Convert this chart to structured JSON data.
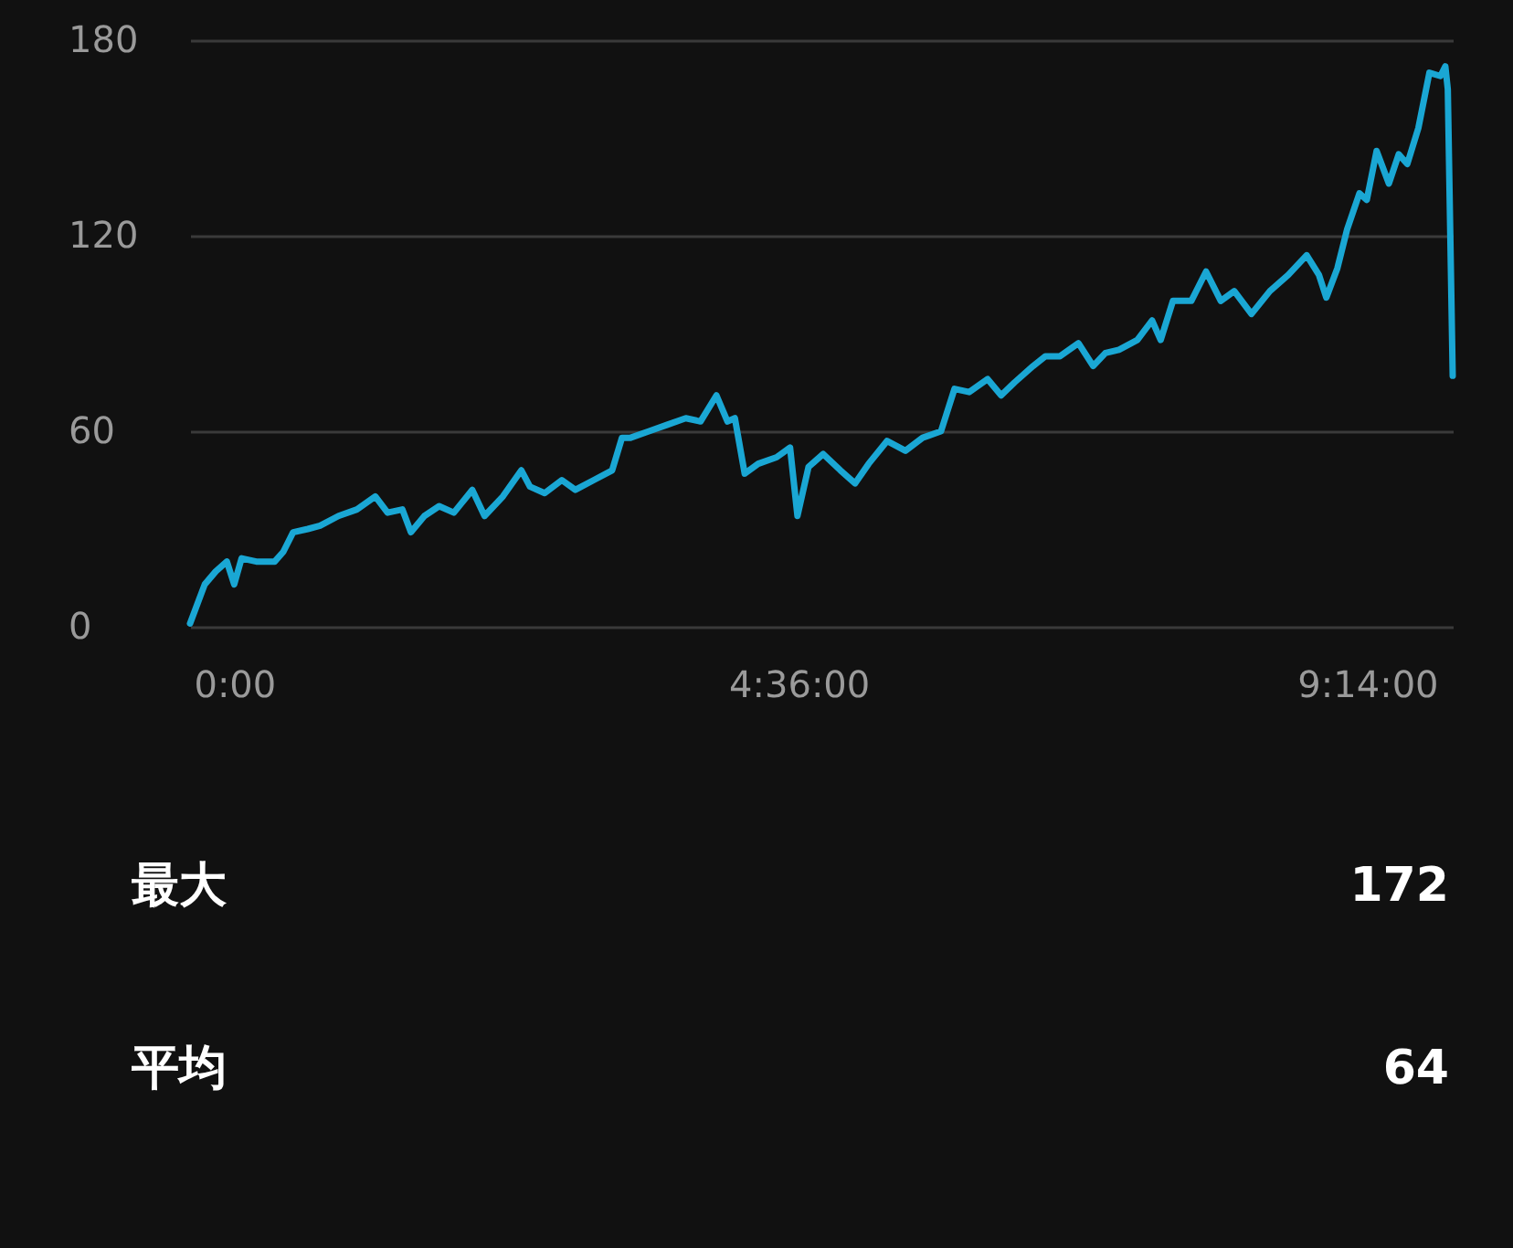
{
  "chart_data": {
    "type": "line",
    "x": [
      -0.36,
      -0.3,
      -0.24,
      -0.15,
      -0.06,
      0,
      0.06,
      0.18,
      0.33,
      0.4,
      0.48,
      0.6,
      0.7,
      0.85,
      1.0,
      1.15,
      1.25,
      1.37,
      1.44,
      1.55,
      1.67,
      1.79,
      1.94,
      2.04,
      2.19,
      2.34,
      2.41,
      2.53,
      2.67,
      2.78,
      2.93,
      3.08,
      3.16,
      3.23,
      3.38,
      3.53,
      3.68,
      3.8,
      3.93,
      4.02,
      4.08,
      4.16,
      4.27,
      4.42,
      4.53,
      4.59,
      4.68,
      4.8,
      4.94,
      5.06,
      5.17,
      5.32,
      5.47,
      5.61,
      5.76,
      5.87,
      5.99,
      6.14,
      6.25,
      6.36,
      6.51,
      6.61,
      6.73,
      6.88,
      7.0,
      7.1,
      7.21,
      7.36,
      7.48,
      7.55,
      7.65,
      7.8,
      7.92,
      8.04,
      8.15,
      8.29,
      8.44,
      8.59,
      8.74,
      8.84,
      8.9,
      8.99,
      9.07,
      9.17,
      9.23,
      9.31,
      9.41,
      9.49,
      9.56,
      9.65,
      9.74,
      9.83,
      9.87,
      9.89,
      9.93
    ],
    "series": [
      {
        "color": "#1aa7d4",
        "values": [
          1,
          7,
          13,
          17,
          20,
          13,
          21,
          20,
          20,
          23,
          29,
          30,
          31,
          34,
          36,
          40,
          35,
          36,
          29,
          34,
          37,
          35,
          42,
          34,
          40,
          48,
          43,
          41,
          45,
          42,
          45,
          48,
          58,
          58,
          60,
          62,
          64,
          63,
          71,
          63,
          64,
          47,
          50,
          52,
          55,
          34,
          49,
          53,
          48,
          44,
          50,
          57,
          54,
          58,
          60,
          73,
          72,
          76,
          71,
          75,
          80,
          83,
          83,
          87,
          80,
          84,
          85,
          88,
          94,
          88,
          100,
          100,
          109,
          100,
          103,
          96,
          103,
          108,
          114,
          108,
          101,
          110,
          122,
          133,
          131,
          146,
          136,
          145,
          142,
          153,
          170,
          169,
          172,
          165,
          77
        ]
      }
    ],
    "xlim": [
      -0.36,
      9.93
    ],
    "xticks": [
      {
        "value": 0,
        "label": "0:00"
      },
      {
        "value": 4.6,
        "label": "4:36:00"
      },
      {
        "value": 9.2333,
        "label": "9:14:00"
      }
    ],
    "ylim": [
      0,
      180
    ],
    "yticks": [
      0,
      60,
      120,
      180
    ],
    "grid": "y",
    "marker": "none",
    "line_style": "solid",
    "annotations": [
      "最大",
      "172",
      "平均",
      "64"
    ]
  }
}
